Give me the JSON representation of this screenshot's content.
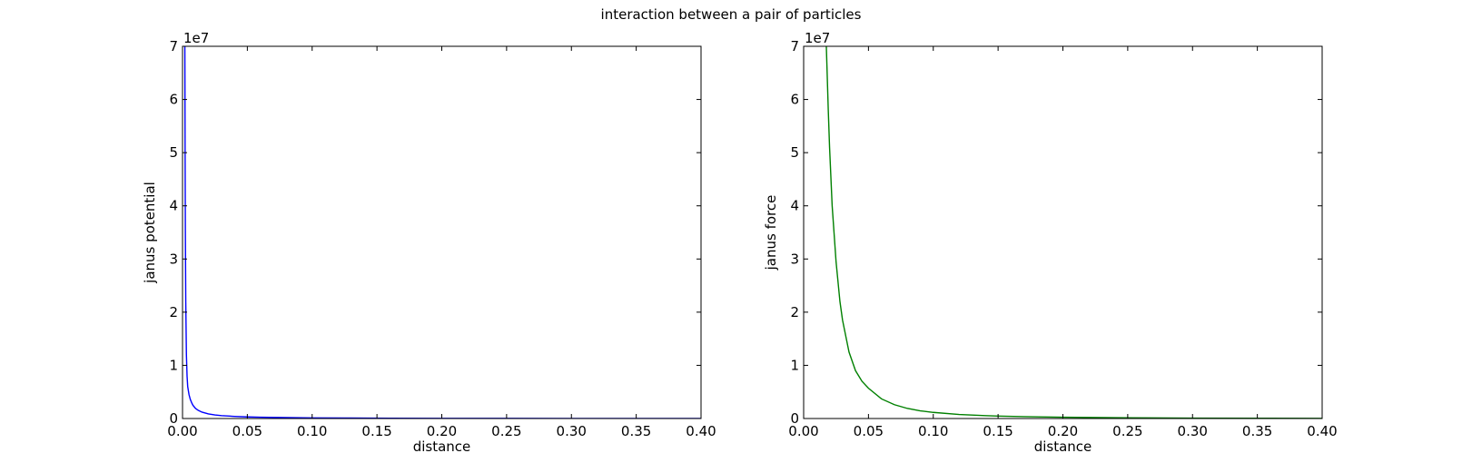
{
  "figure": {
    "title": "interaction between a pair of particles"
  },
  "chart_data": [
    {
      "type": "line",
      "title": "",
      "xlabel": "distance",
      "ylabel": "janus potential",
      "xlim": [
        0.0,
        0.4
      ],
      "ylim": [
        0,
        70000000
      ],
      "offset_label": "1e7",
      "xticks": [
        "0.00",
        "0.05",
        "0.10",
        "0.15",
        "0.20",
        "0.25",
        "0.30",
        "0.35",
        "0.40"
      ],
      "yticks": [
        "0",
        "1",
        "2",
        "3",
        "4",
        "5",
        "6",
        "7"
      ],
      "grid": false,
      "series": [
        {
          "color": "#0000ff",
          "x": [
            0.0018,
            0.002,
            0.0022,
            0.0025,
            0.003,
            0.0035,
            0.004,
            0.005,
            0.006,
            0.007,
            0.008,
            0.01,
            0.012,
            0.015,
            0.02,
            0.025,
            0.03,
            0.04,
            0.05,
            0.06,
            0.08,
            0.1,
            0.13,
            0.16,
            0.2,
            0.25,
            0.3,
            0.35,
            0.4
          ],
          "y": [
            70000000,
            50000000,
            35000000,
            22000000,
            12000000,
            8000000,
            6000000,
            4500000,
            3600000,
            3000000,
            2500000,
            1900000,
            1550000,
            1200000,
            870000,
            680000,
            550000,
            400000,
            300000,
            240000,
            170000,
            125000,
            85000,
            60000,
            40000,
            25000,
            16000,
            10000,
            6000
          ]
        }
      ]
    },
    {
      "type": "line",
      "title": "",
      "xlabel": "distance",
      "ylabel": "janus force",
      "xlim": [
        0.0,
        0.4
      ],
      "ylim": [
        0,
        70000000
      ],
      "offset_label": "1e7",
      "xticks": [
        "0.00",
        "0.05",
        "0.10",
        "0.15",
        "0.20",
        "0.25",
        "0.30",
        "0.35",
        "0.40"
      ],
      "yticks": [
        "0",
        "1",
        "2",
        "3",
        "4",
        "5",
        "6",
        "7"
      ],
      "grid": false,
      "series": [
        {
          "color": "#008000",
          "x": [
            0.0175,
            0.018,
            0.019,
            0.02,
            0.022,
            0.025,
            0.028,
            0.03,
            0.035,
            0.04,
            0.045,
            0.05,
            0.06,
            0.07,
            0.08,
            0.09,
            0.1,
            0.12,
            0.14,
            0.15,
            0.17,
            0.2,
            0.25,
            0.3,
            0.35,
            0.4
          ],
          "y": [
            70000000,
            66000000,
            58000000,
            51000000,
            40000000,
            29500000,
            22000000,
            18500000,
            12500000,
            9000000,
            7000000,
            5700000,
            3700000,
            2600000,
            1900000,
            1450000,
            1150000,
            760000,
            540000,
            460000,
            350000,
            240000,
            130000,
            75000,
            45000,
            28000
          ]
        }
      ]
    }
  ]
}
